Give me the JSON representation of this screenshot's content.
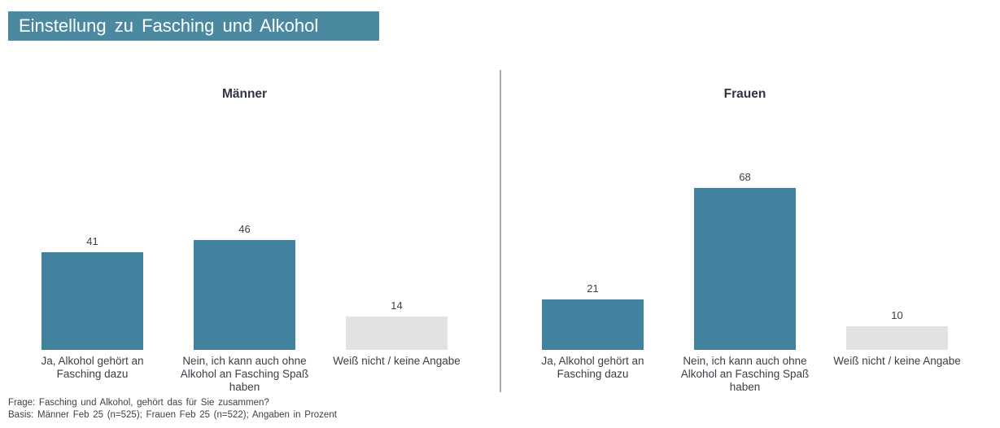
{
  "title_banner": {
    "text": "Einstellung zu Fasching und Alkohol"
  },
  "footer": {
    "line1": "Frage: Fasching und Alkohol, gehört das für Sie zusammen?",
    "line2": "Basis: Männer Feb 25 (n=525); Frauen Feb 25 (n=522); Angaben in Prozent"
  },
  "colors": {
    "accent_teal": "#41839e",
    "banner_bg": "#4a89a0",
    "bar_gray": "#e2e2e2",
    "divider_gray": "#ababab",
    "text_dark": "#3b3f47"
  },
  "chart_data": [
    {
      "type": "bar",
      "title": "Männer",
      "categories": [
        "Ja, Alkohol gehört an Fasching dazu",
        "Nein, ich kann auch ohne Alkohol an Fasching Spaß haben",
        "Weiß nicht / keine Angabe"
      ],
      "values": [
        41,
        46,
        14
      ],
      "bar_color_roles": [
        "accent",
        "accent",
        "neutral"
      ],
      "unit": "percent",
      "ylim": [
        0,
        100
      ],
      "grid": false,
      "legend": false,
      "data_labels": true
    },
    {
      "type": "bar",
      "title": "Frauen",
      "categories": [
        "Ja, Alkohol gehört an Fasching dazu",
        "Nein, ich kann auch ohne Alkohol an Fasching Spaß haben",
        "Weiß nicht / keine Angabe"
      ],
      "values": [
        21,
        68,
        10
      ],
      "bar_color_roles": [
        "accent",
        "accent",
        "neutral"
      ],
      "unit": "percent",
      "ylim": [
        0,
        100
      ],
      "grid": false,
      "legend": false,
      "data_labels": true
    }
  ]
}
